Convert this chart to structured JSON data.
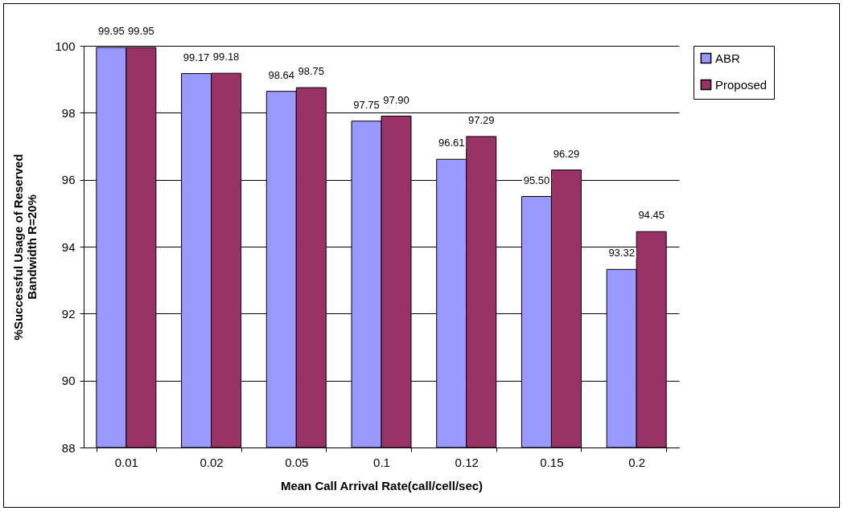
{
  "chart_data": {
    "type": "bar",
    "xlabel": "Mean Call Arrival Rate(call/cell/sec)",
    "ylabel": "%Successful Usage of Reserved\nBandwidth R=20%",
    "categories": [
      "0.01",
      "0.02",
      "0.05",
      "0.1",
      "0.12",
      "0.15",
      "0.2"
    ],
    "series": [
      {
        "name": "ABR",
        "color": "#9999ff",
        "values": [
          99.95,
          99.17,
          98.64,
          97.75,
          96.61,
          95.5,
          93.32
        ],
        "value_labels": [
          "99.95",
          "99.17",
          "98.64",
          "97.75",
          "96.61",
          "95.50",
          "93.32"
        ]
      },
      {
        "name": "Proposed",
        "color": "#993366",
        "values": [
          99.95,
          99.18,
          98.75,
          97.9,
          97.29,
          96.29,
          94.45
        ],
        "value_labels": [
          "99.95",
          "99.18",
          "98.75",
          "97.90",
          "97.29",
          "96.29",
          "94.45"
        ]
      }
    ],
    "ylim": [
      88,
      100
    ],
    "yticks": [
      88,
      90,
      92,
      94,
      96,
      98,
      100
    ],
    "grid": "y",
    "legend": "right"
  }
}
